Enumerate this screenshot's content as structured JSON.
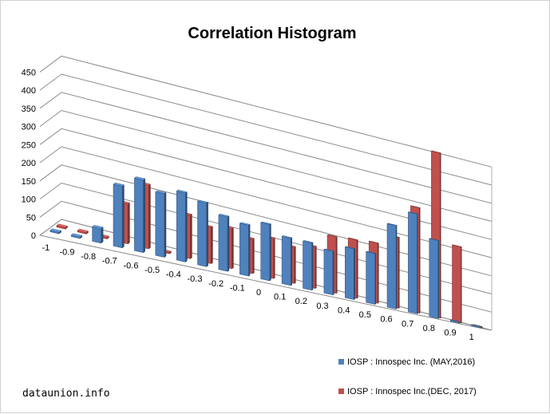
{
  "chart_data": {
    "type": "bar",
    "subtype": "3d-clustered-column",
    "title": "Correlation Histogram",
    "categories": [
      "-1",
      "-0.9",
      "-0.8",
      "-0.7",
      "-0.6",
      "-0.5",
      "-0.4",
      "-0.3",
      "-0.2",
      "-0.1",
      "0",
      "0.1",
      "0.2",
      "0.3",
      "0.4",
      "0.5",
      "0.6",
      "0.7",
      "0.8",
      "0.9",
      "1"
    ],
    "series": [
      {
        "name": "IOSP : Innospec Inc. (MAY,2016)",
        "color": "#4f81bd",
        "values": [
          0,
          0,
          40,
          170,
          200,
          175,
          190,
          175,
          150,
          140,
          155,
          130,
          130,
          120,
          140,
          140,
          230,
          275,
          215,
          0,
          0
        ]
      },
      {
        "name": "IOSP : Innospec Inc.(DEC, 2017)",
        "color": "#c0504d",
        "values": [
          0,
          0,
          0,
          110,
          175,
          0,
          120,
          100,
          110,
          95,
          110,
          100,
          115,
          155,
          160,
          165,
          195,
          290,
          455,
          210,
          0
        ]
      }
    ],
    "ylim": [
      0,
      450
    ],
    "yticks": [
      "0",
      "50",
      "100",
      "150",
      "200",
      "250",
      "300",
      "350",
      "400",
      "450"
    ],
    "grid": true,
    "legend_position": "bottom-right"
  },
  "watermark": "dataunion.info"
}
